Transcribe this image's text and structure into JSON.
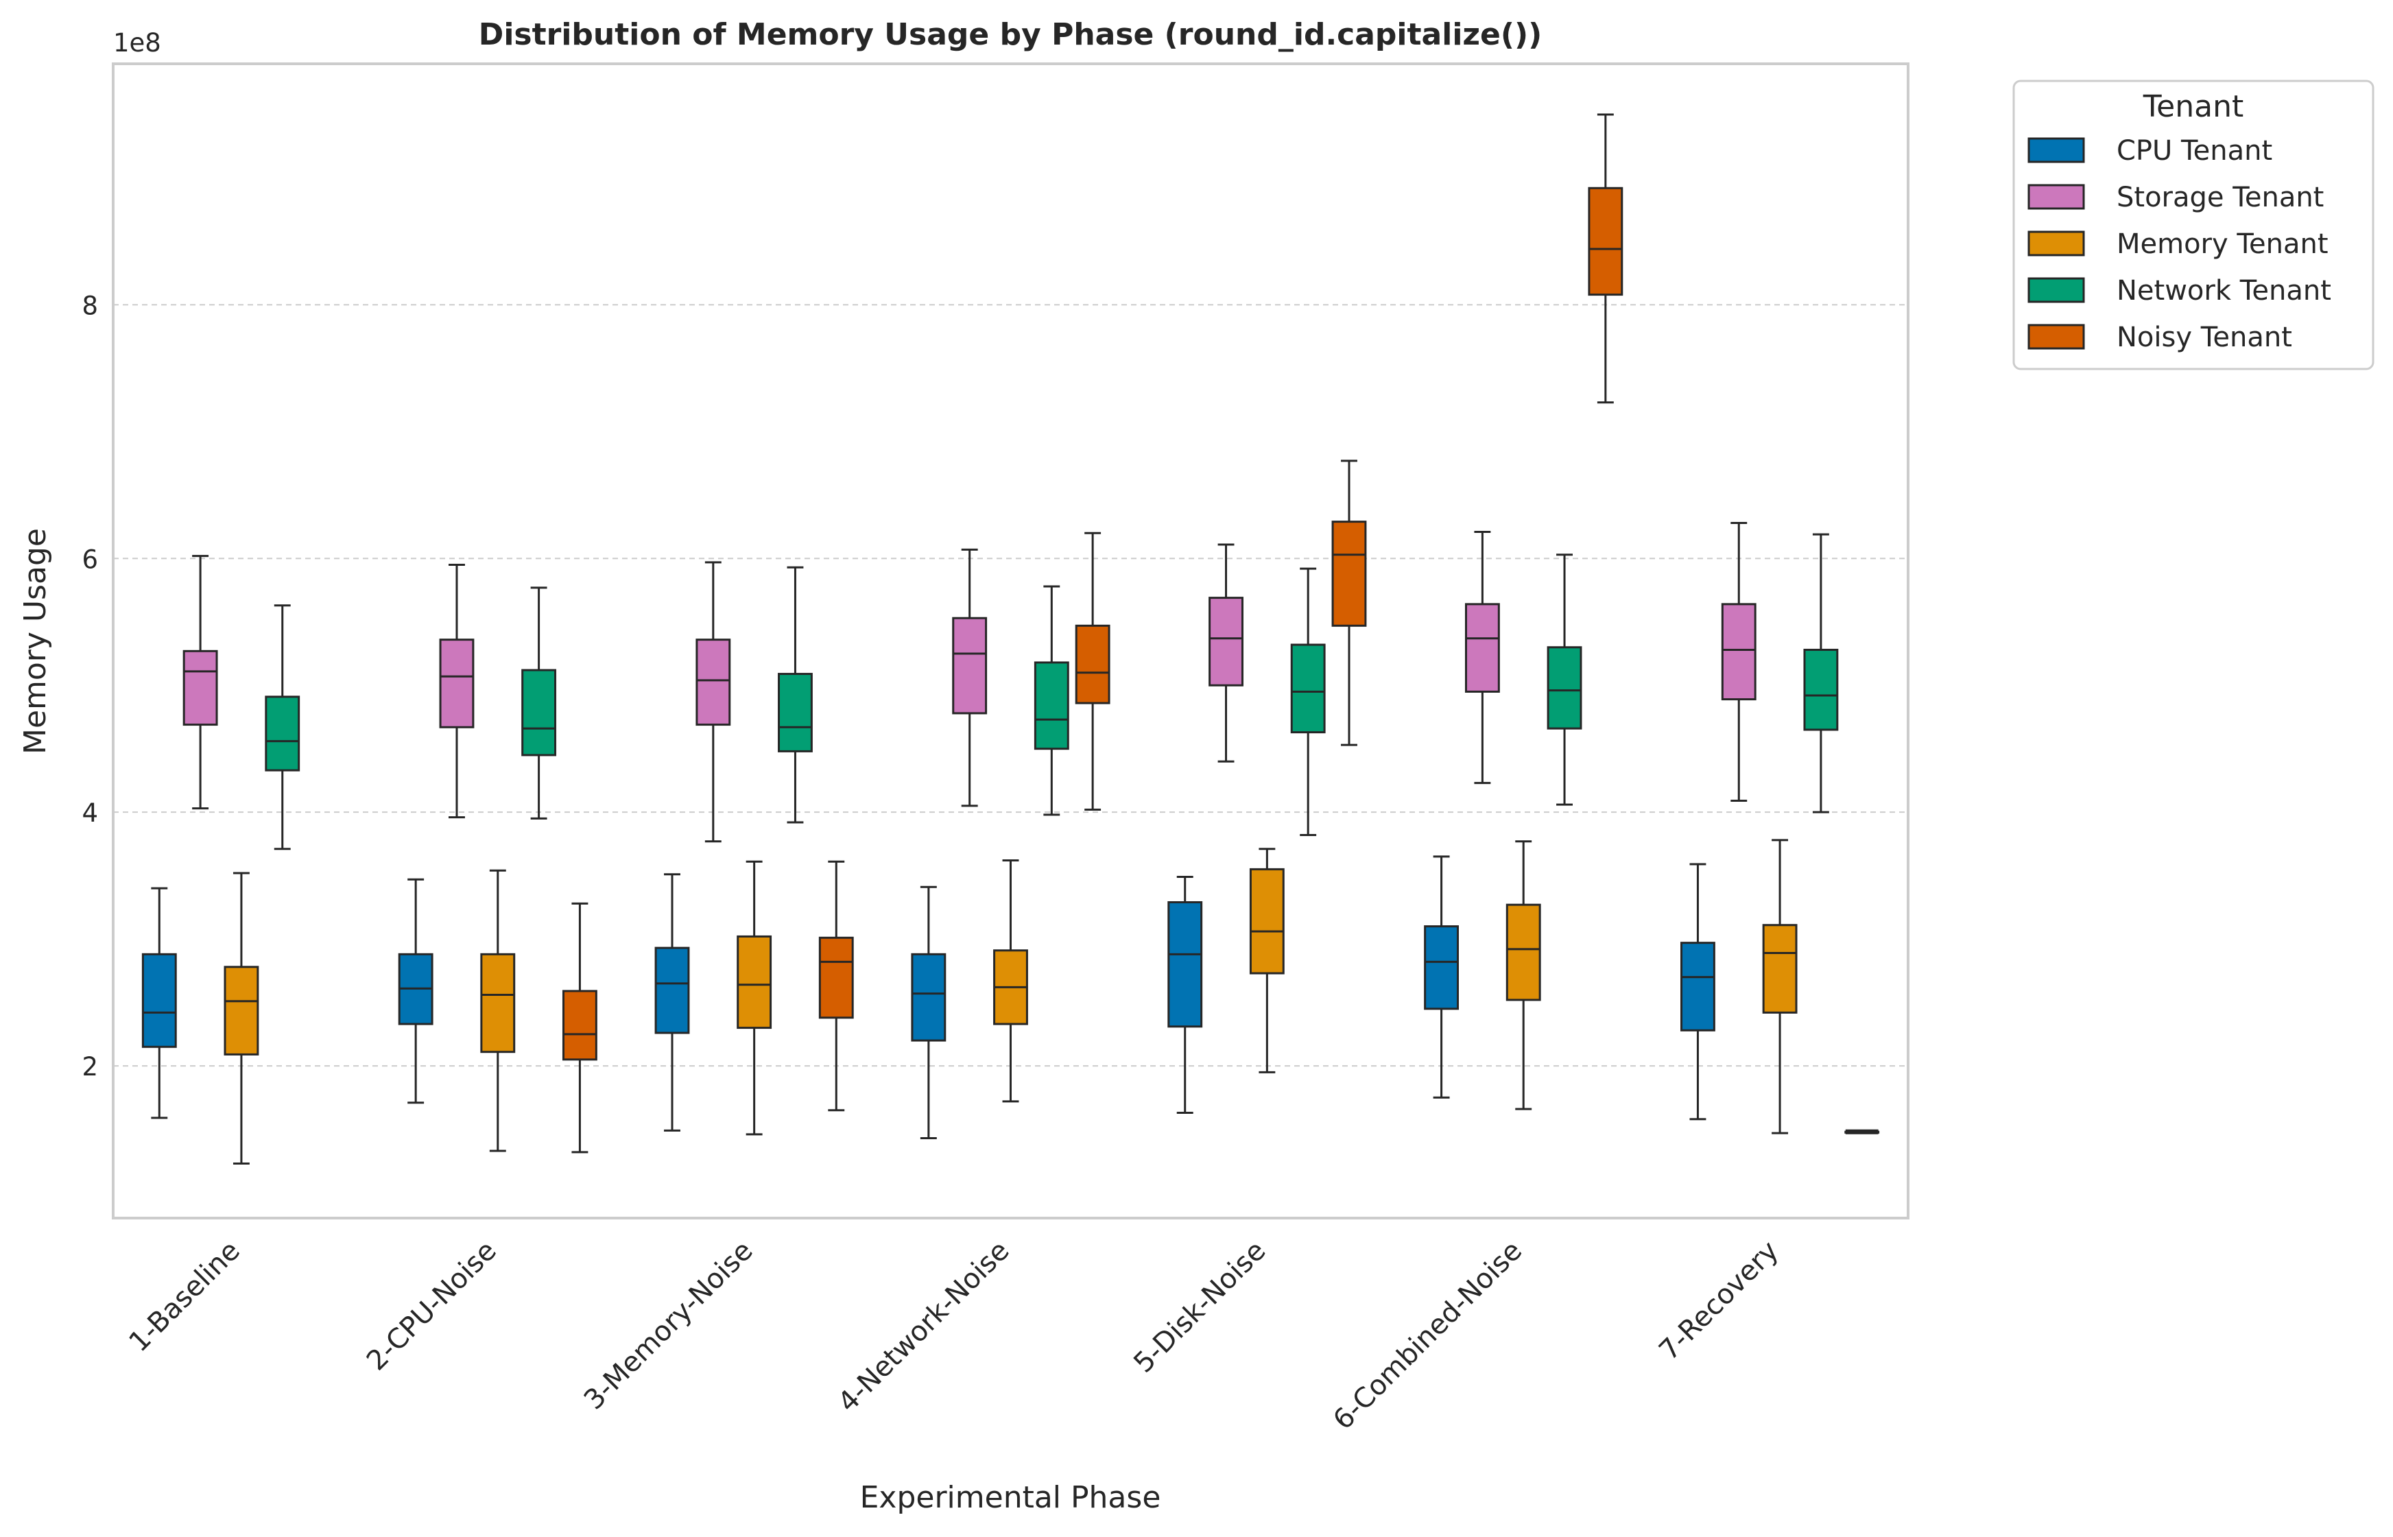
{
  "chart_data": {
    "type": "box",
    "title": "Distribution of Memory Usage by Phase (round_id.capitalize())",
    "xlabel": "Experimental Phase",
    "ylabel": "Memory Usage",
    "y_multiplier_label": "1e8",
    "ylim": [
      0.8,
      9.9
    ],
    "yticks": [
      {
        "value": 2,
        "label": "2"
      },
      {
        "value": 4,
        "label": "4"
      },
      {
        "value": 6,
        "label": "6"
      },
      {
        "value": 8,
        "label": "8"
      }
    ],
    "grid": "horizontal dashed",
    "legend": {
      "title": "Tenant",
      "placement": "outside right"
    },
    "categories": [
      "1-Baseline",
      "2-CPU-Noise",
      "3-Memory-Noise",
      "4-Network-Noise",
      "5-Disk-Noise",
      "6-Combined-Noise",
      "7-Recovery"
    ],
    "series": [
      {
        "name": "CPU Tenant",
        "color": "#0173b2",
        "boxes": [
          {
            "category": "1-Baseline",
            "whislo": 1.59,
            "q1": 2.15,
            "median": 2.42,
            "q3": 2.88,
            "whishi": 3.4
          },
          {
            "category": "2-CPU-Noise",
            "whislo": 1.71,
            "q1": 2.33,
            "median": 2.61,
            "q3": 2.88,
            "whishi": 3.47
          },
          {
            "category": "3-Memory-Noise",
            "whislo": 1.49,
            "q1": 2.26,
            "median": 2.65,
            "q3": 2.93,
            "whishi": 3.51
          },
          {
            "category": "4-Network-Noise",
            "whislo": 1.43,
            "q1": 2.2,
            "median": 2.57,
            "q3": 2.88,
            "whishi": 3.41
          },
          {
            "category": "5-Disk-Noise",
            "whislo": 1.63,
            "q1": 2.31,
            "median": 2.88,
            "q3": 3.29,
            "whishi": 3.49
          },
          {
            "category": "6-Combined-Noise",
            "whislo": 1.75,
            "q1": 2.45,
            "median": 2.82,
            "q3": 3.1,
            "whishi": 3.65
          },
          {
            "category": "7-Recovery",
            "whislo": 1.58,
            "q1": 2.28,
            "median": 2.7,
            "q3": 2.97,
            "whishi": 3.59
          }
        ]
      },
      {
        "name": "Storage Tenant",
        "color": "#cc78bc",
        "boxes": [
          {
            "category": "1-Baseline",
            "whislo": 4.03,
            "q1": 4.69,
            "median": 5.11,
            "q3": 5.27,
            "whishi": 6.02
          },
          {
            "category": "2-CPU-Noise",
            "whislo": 3.96,
            "q1": 4.67,
            "median": 5.07,
            "q3": 5.36,
            "whishi": 5.95
          },
          {
            "category": "3-Memory-Noise",
            "whislo": 3.77,
            "q1": 4.69,
            "median": 5.04,
            "q3": 5.36,
            "whishi": 5.97
          },
          {
            "category": "4-Network-Noise",
            "whislo": 4.05,
            "q1": 4.78,
            "median": 5.25,
            "q3": 5.53,
            "whishi": 6.07
          },
          {
            "category": "5-Disk-Noise",
            "whislo": 4.4,
            "q1": 5.0,
            "median": 5.37,
            "q3": 5.69,
            "whishi": 6.11
          },
          {
            "category": "6-Combined-Noise",
            "whislo": 4.23,
            "q1": 4.95,
            "median": 5.37,
            "q3": 5.64,
            "whishi": 6.21
          },
          {
            "category": "7-Recovery",
            "whislo": 4.09,
            "q1": 4.89,
            "median": 5.28,
            "q3": 5.64,
            "whishi": 6.28
          }
        ]
      },
      {
        "name": "Memory Tenant",
        "color": "#de8f05",
        "boxes": [
          {
            "category": "1-Baseline",
            "whislo": 1.23,
            "q1": 2.09,
            "median": 2.51,
            "q3": 2.78,
            "whishi": 3.52
          },
          {
            "category": "2-CPU-Noise",
            "whislo": 1.33,
            "q1": 2.11,
            "median": 2.56,
            "q3": 2.88,
            "whishi": 3.54
          },
          {
            "category": "3-Memory-Noise",
            "whislo": 1.46,
            "q1": 2.3,
            "median": 2.64,
            "q3": 3.02,
            "whishi": 3.61
          },
          {
            "category": "4-Network-Noise",
            "whislo": 1.72,
            "q1": 2.33,
            "median": 2.62,
            "q3": 2.91,
            "whishi": 3.62
          },
          {
            "category": "5-Disk-Noise",
            "whislo": 1.95,
            "q1": 2.73,
            "median": 3.06,
            "q3": 3.55,
            "whishi": 3.71
          },
          {
            "category": "6-Combined-Noise",
            "whislo": 1.66,
            "q1": 2.52,
            "median": 2.92,
            "q3": 3.27,
            "whishi": 3.77
          },
          {
            "category": "7-Recovery",
            "whislo": 1.47,
            "q1": 2.42,
            "median": 2.89,
            "q3": 3.11,
            "whishi": 3.78
          }
        ]
      },
      {
        "name": "Network Tenant",
        "color": "#029e73",
        "boxes": [
          {
            "category": "1-Baseline",
            "whislo": 3.71,
            "q1": 4.33,
            "median": 4.56,
            "q3": 4.91,
            "whishi": 5.63
          },
          {
            "category": "2-CPU-Noise",
            "whislo": 3.95,
            "q1": 4.45,
            "median": 4.66,
            "q3": 5.12,
            "whishi": 5.77
          },
          {
            "category": "3-Memory-Noise",
            "whislo": 3.92,
            "q1": 4.48,
            "median": 4.67,
            "q3": 5.09,
            "whishi": 5.93
          },
          {
            "category": "4-Network-Noise",
            "whislo": 3.98,
            "q1": 4.5,
            "median": 4.73,
            "q3": 5.18,
            "whishi": 5.78
          },
          {
            "category": "5-Disk-Noise",
            "whislo": 3.82,
            "q1": 4.63,
            "median": 4.95,
            "q3": 5.32,
            "whishi": 5.92
          },
          {
            "category": "6-Combined-Noise",
            "whislo": 4.06,
            "q1": 4.66,
            "median": 4.96,
            "q3": 5.3,
            "whishi": 6.03
          },
          {
            "category": "7-Recovery",
            "whislo": 4.0,
            "q1": 4.65,
            "median": 4.92,
            "q3": 5.28,
            "whishi": 6.19
          }
        ]
      },
      {
        "name": "Noisy Tenant",
        "color": "#d55e00",
        "boxes": [
          {
            "category": "2-CPU-Noise",
            "whislo": 1.32,
            "q1": 2.05,
            "median": 2.25,
            "q3": 2.59,
            "whishi": 3.28
          },
          {
            "category": "3-Memory-Noise",
            "whislo": 1.65,
            "q1": 2.38,
            "median": 2.82,
            "q3": 3.01,
            "whishi": 3.61
          },
          {
            "category": "4-Network-Noise",
            "whislo": 4.02,
            "q1": 4.86,
            "median": 5.1,
            "q3": 5.47,
            "whishi": 6.2
          },
          {
            "category": "5-Disk-Noise",
            "whislo": 4.53,
            "q1": 5.47,
            "median": 6.03,
            "q3": 6.29,
            "whishi": 6.77
          },
          {
            "category": "6-Combined-Noise",
            "whislo": 7.23,
            "q1": 8.08,
            "median": 8.44,
            "q3": 8.92,
            "whishi": 9.5
          },
          {
            "category": "7-Recovery",
            "whislo": 1.48,
            "q1": 1.48,
            "median": 1.48,
            "q3": 1.48,
            "whishi": 1.48
          }
        ]
      }
    ]
  }
}
